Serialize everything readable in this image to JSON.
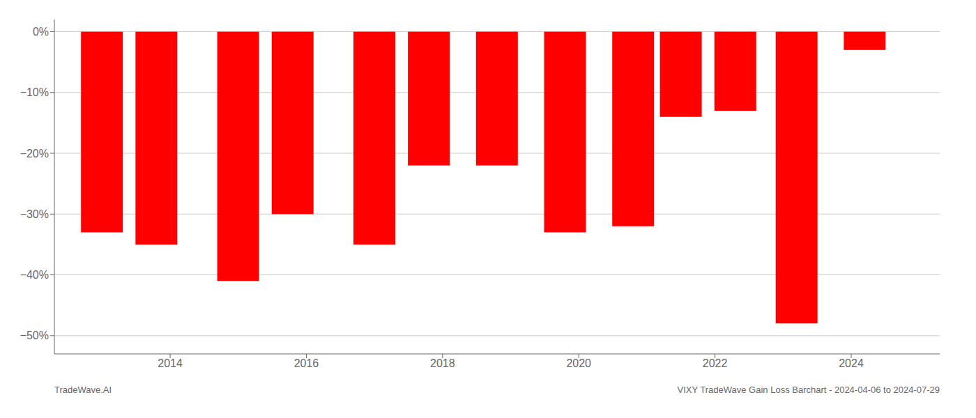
{
  "chart_data": {
    "type": "bar",
    "x": [
      2013,
      2013.8,
      2015,
      2015.8,
      2017,
      2017.8,
      2018.8,
      2019.8,
      2020.8,
      2021.5,
      2022.3,
      2023.2,
      2024.2
    ],
    "values": [
      -33,
      -35,
      -41,
      -30,
      -35,
      -22,
      -22,
      -33,
      -32,
      -14,
      -13,
      -48,
      -3
    ],
    "color": "#ff0000",
    "xlim": [
      2012.3,
      2025.3
    ],
    "xticks": [
      2014,
      2016,
      2018,
      2020,
      2022,
      2024
    ],
    "ylim": [
      -53,
      2
    ],
    "yticks": [
      {
        "value": 0,
        "label": "0%"
      },
      {
        "value": -10,
        "label": "−10%"
      },
      {
        "value": -20,
        "label": "−20%"
      },
      {
        "value": -30,
        "label": "−30%"
      },
      {
        "value": -40,
        "label": "−40%"
      },
      {
        "value": -50,
        "label": "−50%"
      }
    ],
    "grid": true,
    "annotations": [
      "TradeWave.AI",
      "VIXY TradeWave Gain Loss Barchart - 2024-04-06 to 2024-07-29"
    ]
  }
}
